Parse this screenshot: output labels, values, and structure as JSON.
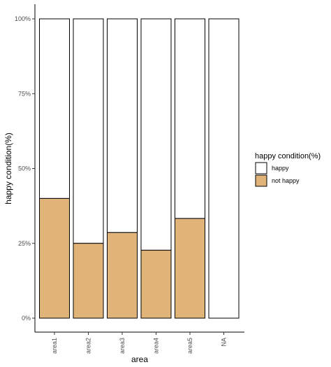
{
  "chart_data": {
    "type": "bar",
    "stacked": true,
    "percent": true,
    "categories": [
      "area1",
      "area2",
      "area3",
      "area4",
      "area5",
      "NA"
    ],
    "series": [
      {
        "name": "happy",
        "color": "#ffffff",
        "values": [
          60.0,
          75.0,
          71.4,
          77.3,
          66.7,
          100.0
        ]
      },
      {
        "name": "not happy",
        "color": "#e0b379",
        "values": [
          40.0,
          25.0,
          28.6,
          22.7,
          33.3,
          0.0
        ]
      }
    ],
    "ylim": [
      0,
      100
    ],
    "yticks": [
      0,
      25,
      50,
      75,
      100
    ],
    "ytick_labels": [
      "0%",
      "25%",
      "50%",
      "75%",
      "100%"
    ],
    "xlabel": "area",
    "ylabel": "happy condition(%)",
    "legend": {
      "title": "happy condition(%)",
      "position": "right",
      "entries": [
        "happy",
        "not happy"
      ]
    },
    "grid": false,
    "x_tick_rotation": "vertical"
  }
}
